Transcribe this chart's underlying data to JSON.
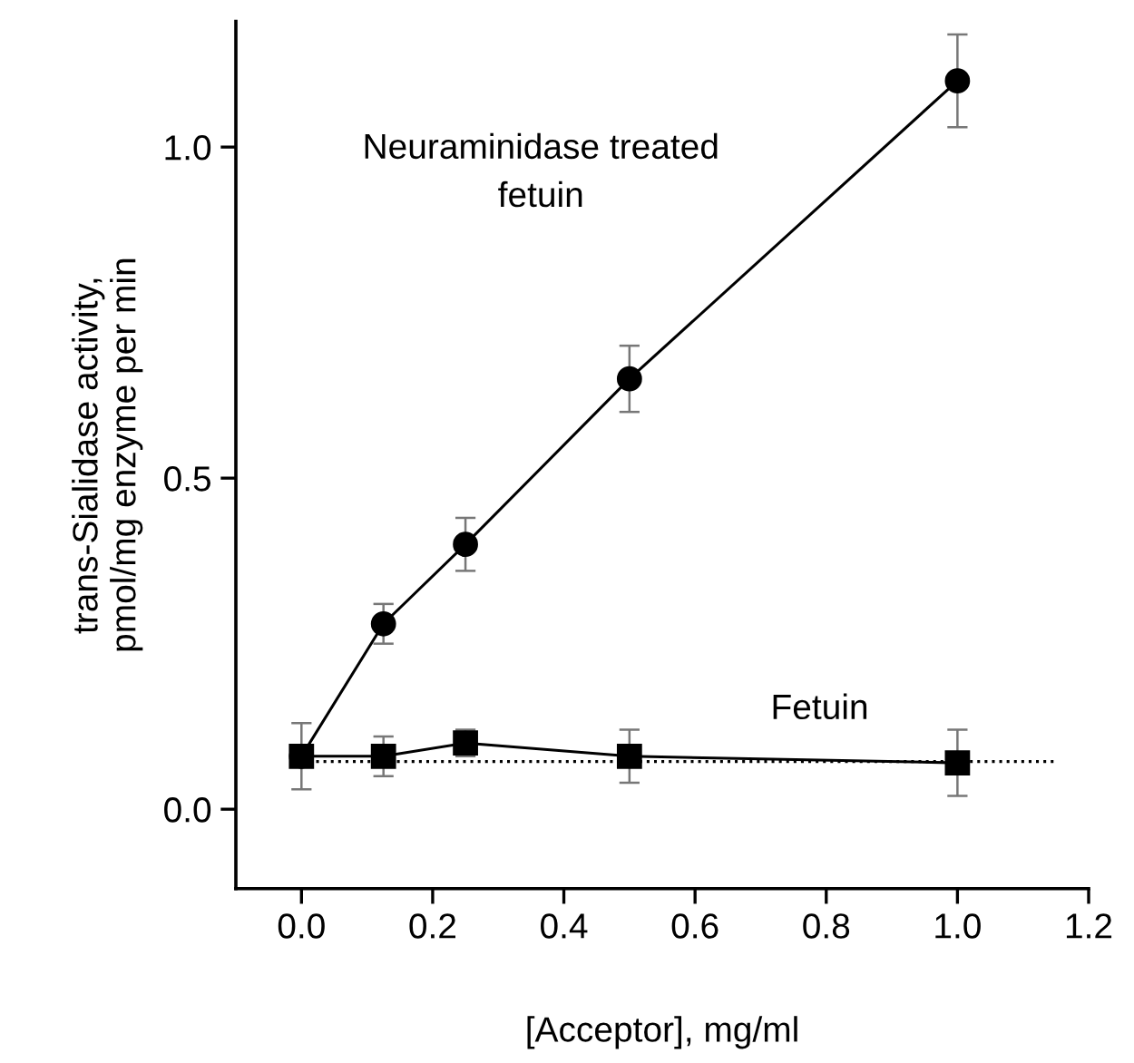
{
  "chart_data": {
    "type": "line",
    "xlabel": "[Acceptor], mg/ml",
    "ylabel": "trans-Sialidase activity,\npmol/mg enzyme per min",
    "xlim": [
      -0.1,
      1.2
    ],
    "ylim": [
      -0.12,
      1.19
    ],
    "xticks": [
      {
        "value": 0,
        "label": "0.0"
      },
      0.2,
      0.4,
      0.6,
      0.8,
      {
        "value": 1,
        "label": "1.0"
      },
      1.2
    ],
    "yticks": [
      {
        "value": 0,
        "label": "0.0"
      },
      0.5,
      {
        "value": 1,
        "label": "1.0"
      }
    ],
    "grid": false,
    "legend": false,
    "series": [
      {
        "name": "Neuraminidase treated\nfetuin",
        "color": "#000000",
        "marker": "circle",
        "line_style": "solid",
        "x": [
          0,
          0.125,
          0.25,
          0.5,
          1.0
        ],
        "values": [
          0.08,
          0.28,
          0.4,
          0.65,
          1.1
        ],
        "errors": [
          null,
          0.03,
          0.04,
          0.05,
          0.07
        ]
      },
      {
        "name": "Fetuin",
        "color": "#000000",
        "marker": "square",
        "line_style": "solid",
        "x": [
          0,
          0.125,
          0.25,
          0.5,
          1.0
        ],
        "values": [
          0.08,
          0.08,
          0.1,
          0.08,
          0.07
        ],
        "errors": [
          0.05,
          0.03,
          0.02,
          0.04,
          0.05
        ]
      },
      {
        "color": "#000000",
        "marker": "none",
        "line_style": "dotted",
        "x": [
          0,
          1.15
        ],
        "values": [
          0.072,
          0.072
        ]
      }
    ]
  }
}
